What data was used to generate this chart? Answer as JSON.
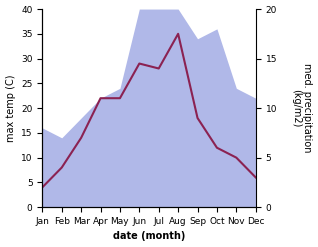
{
  "months": [
    "Jan",
    "Feb",
    "Mar",
    "Apr",
    "May",
    "Jun",
    "Jul",
    "Aug",
    "Sep",
    "Oct",
    "Nov",
    "Dec"
  ],
  "temperature": [
    4,
    8,
    14,
    22,
    22,
    29,
    28,
    35,
    18,
    12,
    10,
    6
  ],
  "precipitation": [
    8,
    7,
    9,
    11,
    12,
    20,
    20,
    20,
    17,
    18,
    12,
    11
  ],
  "temp_color": "#8B2252",
  "precip_color_fill": "#b0b8e8",
  "ylabel_left": "max temp (C)",
  "ylabel_right": "med. precipitation\n(kg/m2)",
  "xlabel": "date (month)",
  "ylim_left": [
    0,
    40
  ],
  "ylim_right": [
    0,
    20
  ],
  "scale_factor": 2.0,
  "bg_color": "#ffffff",
  "label_fontsize": 7,
  "tick_fontsize": 6.5
}
